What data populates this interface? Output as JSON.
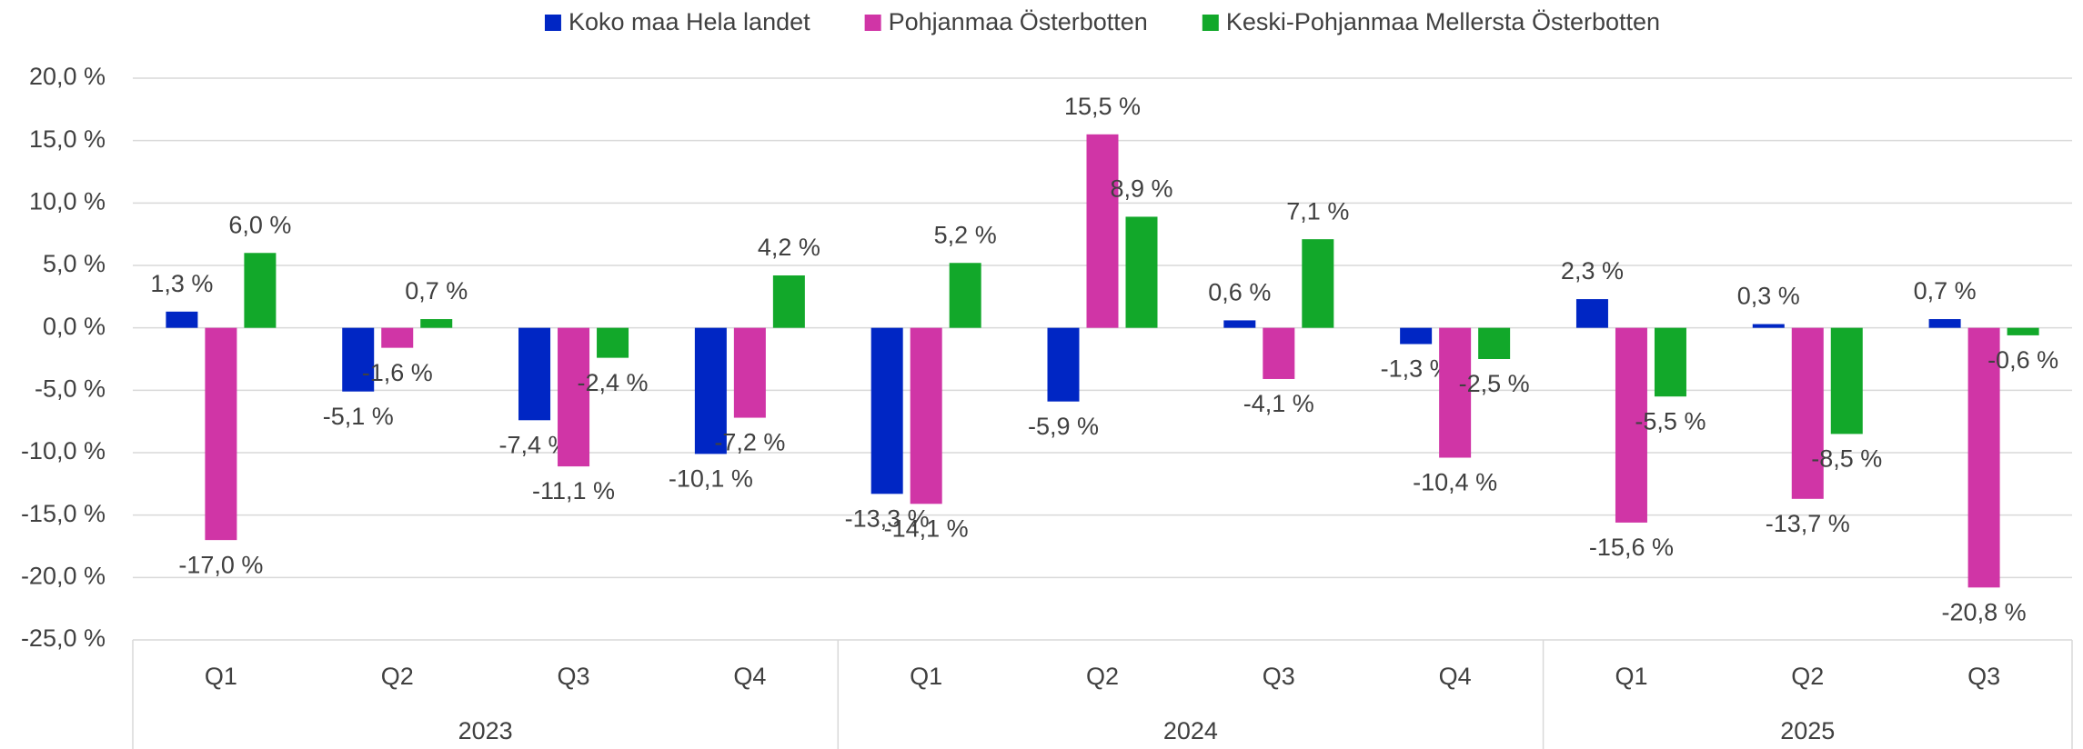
{
  "chart_data": {
    "type": "bar",
    "category_groups": [
      {
        "name": "2023",
        "categories": [
          "Q1",
          "Q2",
          "Q3",
          "Q4"
        ]
      },
      {
        "name": "2024",
        "categories": [
          "Q1",
          "Q2",
          "Q3",
          "Q4"
        ]
      },
      {
        "name": "2025",
        "categories": [
          "Q1",
          "Q2",
          "Q3"
        ]
      }
    ],
    "series": [
      {
        "name": "Koko maa Hela landet",
        "color": "#0026c4",
        "values": [
          1.3,
          -5.1,
          -7.4,
          -10.1,
          -13.3,
          -5.9,
          0.6,
          -1.3,
          2.3,
          0.3,
          0.7
        ],
        "value_labels": [
          "1,3 %",
          "-5,1 %",
          "-7,4 %",
          "-10,1 %",
          "-13,3 %",
          "-5,9 %",
          "0,6 %",
          "-1,3 %",
          "2,3 %",
          "0,3 %",
          "0,7 %"
        ]
      },
      {
        "name": "Pohjanmaa Österbotten",
        "color": "#d035a6",
        "values": [
          -17.0,
          -1.6,
          -11.1,
          -7.2,
          -14.1,
          15.5,
          -4.1,
          -10.4,
          -15.6,
          -13.7,
          -20.8
        ],
        "value_labels": [
          "-17,0 %",
          "-1,6 %",
          "-11,1 %",
          "-7,2 %",
          "-14,1 %",
          "15,5 %",
          "-4,1 %",
          "-10,4 %",
          "-15,6 %",
          "-13,7 %",
          "-20,8 %"
        ]
      },
      {
        "name": "Keski-Pohjanmaa Mellersta Österbotten",
        "color": "#12a82a",
        "values": [
          6.0,
          0.7,
          -2.4,
          4.2,
          5.2,
          8.9,
          7.1,
          -2.5,
          -5.5,
          -8.5,
          -0.6
        ],
        "value_labels": [
          "6,0 %",
          "0,7 %",
          "-2,4 %",
          "4,2 %",
          "5,2 %",
          "8,9 %",
          "7,1 %",
          "-2,5 %",
          "-5,5 %",
          "-8,5 %",
          "-0,6 %"
        ]
      }
    ],
    "ylim": [
      -25,
      20
    ],
    "yticks": [
      {
        "value": -25,
        "label": "-25,0 %"
      },
      {
        "value": -20,
        "label": "-20,0 %"
      },
      {
        "value": -15,
        "label": "-15,0 %"
      },
      {
        "value": -10,
        "label": "-10,0 %"
      },
      {
        "value": -5,
        "label": "-5,0 %"
      },
      {
        "value": 0,
        "label": "0,0 %"
      },
      {
        "value": 5,
        "label": "5,0 %"
      },
      {
        "value": 10,
        "label": "10,0 %"
      },
      {
        "value": 15,
        "label": "15,0 %"
      },
      {
        "value": 20,
        "label": "20,0 %"
      }
    ],
    "grid": true,
    "legend": "top"
  }
}
